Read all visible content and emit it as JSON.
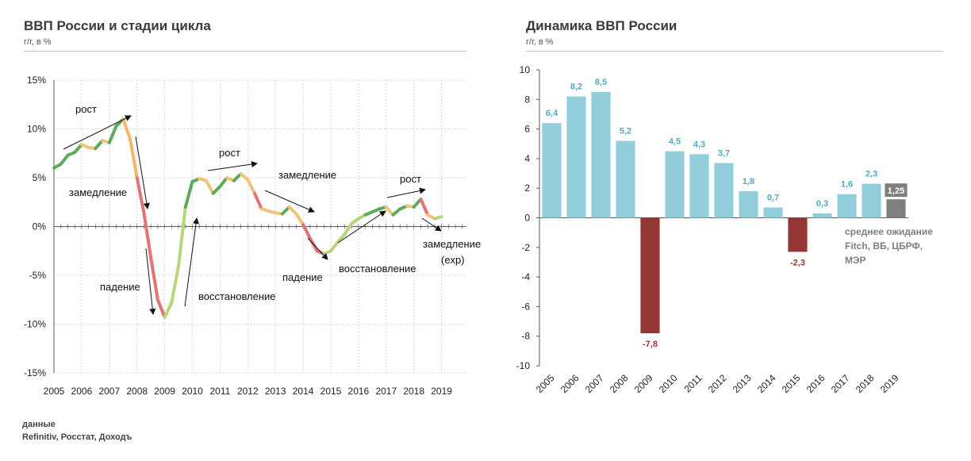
{
  "left_panel": {
    "title": "ВВП России и стадии цикла",
    "subtitle": "г/г, в %"
  },
  "right_panel": {
    "title": "Динамика ВВП России",
    "subtitle": "г/г, в %"
  },
  "source": {
    "label": "данные",
    "text": "Refinitiv, Росстат, Доходъ"
  },
  "chart_data": [
    {
      "type": "line",
      "title": "ВВП России и стадии цикла",
      "subtitle": "г/г, в %",
      "ylim": [
        -15,
        15
      ],
      "yticks": [
        "-15%",
        "-10%",
        "-5%",
        "0%",
        "5%",
        "10%",
        "15%"
      ],
      "xticks": [
        "2005",
        "2006",
        "2007",
        "2008",
        "2009",
        "2010",
        "2011",
        "2012",
        "2013",
        "2014",
        "2015",
        "2016",
        "2017",
        "2018",
        "2019"
      ],
      "grid": true,
      "series": [
        {
          "x": [
            2005.0,
            2005.25,
            2005.5,
            2005.75,
            2006.0,
            2006.25,
            2006.5,
            2006.75,
            2007.0,
            2007.25,
            2007.5,
            2007.75,
            2008.0,
            2008.25,
            2008.5,
            2008.75,
            2009.0,
            2009.25,
            2009.5,
            2009.75,
            2010.0,
            2010.25,
            2010.5,
            2010.75,
            2011.0,
            2011.25,
            2011.5,
            2011.75,
            2012.0,
            2012.25,
            2012.5,
            2012.75,
            2013.0,
            2013.25,
            2013.5,
            2013.75,
            2014.0,
            2014.25,
            2014.5,
            2014.75,
            2015.0,
            2015.25,
            2015.5,
            2015.75,
            2016.0,
            2016.25,
            2016.5,
            2016.75,
            2017.0,
            2017.25,
            2017.5,
            2017.75,
            2018.0,
            2018.25,
            2018.5,
            2018.75,
            2019.0
          ],
          "values": [
            6.0,
            6.4,
            7.3,
            7.6,
            8.4,
            8.1,
            8.0,
            8.8,
            8.6,
            10.3,
            11.0,
            9.0,
            5.0,
            1.4,
            -3.2,
            -7.5,
            -9.3,
            -7.8,
            -4.0,
            2.0,
            4.6,
            4.9,
            4.7,
            3.4,
            4.1,
            5.0,
            4.7,
            5.4,
            4.8,
            3.4,
            1.8,
            1.6,
            1.4,
            1.3,
            2.0,
            1.3,
            0.2,
            -1.2,
            -2.5,
            -2.8,
            -2.5,
            -1.6,
            -0.8,
            0.3,
            0.8,
            1.2,
            1.5,
            1.8,
            2.0,
            1.2,
            1.8,
            2.1,
            2.0,
            2.8,
            1.2,
            0.8,
            1.0
          ]
        }
      ],
      "annotations": [
        {
          "text": "рост"
        },
        {
          "text": "замедление"
        },
        {
          "text": "падение"
        },
        {
          "text": "восстановление"
        },
        {
          "text": "рост"
        },
        {
          "text": "замедление"
        },
        {
          "text": "падение"
        },
        {
          "text": "восстановление"
        },
        {
          "text": "рост"
        },
        {
          "text": "замедление"
        },
        {
          "text": "(exp)"
        }
      ]
    },
    {
      "type": "bar",
      "title": "Динамика ВВП России",
      "subtitle": "г/г, в %",
      "categories": [
        "2005",
        "2006",
        "2007",
        "2008",
        "2009",
        "2010",
        "2011",
        "2012",
        "2013",
        "2014",
        "2015",
        "2016",
        "2017",
        "2018",
        "2019"
      ],
      "values": [
        6.4,
        8.2,
        8.5,
        5.2,
        -7.8,
        4.5,
        4.3,
        3.7,
        1.8,
        0.7,
        -2.3,
        0.3,
        1.6,
        2.3,
        1.25
      ],
      "labels": [
        "6,4",
        "8,2",
        "8,5",
        "5,2",
        "-7,8",
        "4,5",
        "4,3",
        "3,7",
        "1,8",
        "0,7",
        "-2,3",
        "0,3",
        "1,6",
        "2,3",
        "1,25"
      ],
      "ylim": [
        -10,
        10
      ],
      "yticks": [
        "-10",
        "-8",
        "-6",
        "-4",
        "-2",
        "0",
        "2",
        "4",
        "6",
        "8",
        "10"
      ],
      "grid": false,
      "colors": {
        "positive": "#92cddc",
        "negative": "#953735",
        "expected": "#7f7f7f"
      },
      "note": "среднее ожидание Fitch, ВБ, ЦБРФ, МЭР"
    }
  ]
}
